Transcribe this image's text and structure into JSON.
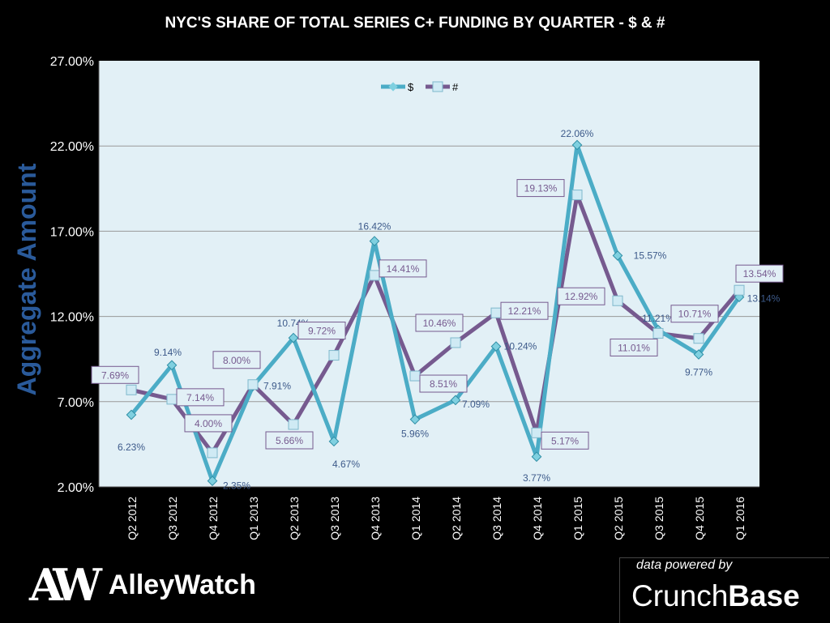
{
  "chart_data": {
    "type": "line",
    "title": "NYC'S SHARE OF TOTAL SERIES C+ FUNDING BY QUARTER - $ & #",
    "ylabel": "Aggregate Amount",
    "xlabel": "",
    "ylim": [
      2,
      27
    ],
    "yticks": [
      "2.00%",
      "7.00%",
      "12.00%",
      "17.00%",
      "22.00%",
      "27.00%"
    ],
    "grid": true,
    "legend_position": "top-center",
    "categories": [
      "Q2 2012",
      "Q3 2012",
      "Q4 2012",
      "Q1 2013",
      "Q2 2013",
      "Q3 2013",
      "Q4 2013",
      "Q1 2014",
      "Q2 2014",
      "Q3 2014",
      "Q4 2014",
      "Q1 2015",
      "Q2 2015",
      "Q3 2015",
      "Q4 2015",
      "Q1 2016"
    ],
    "series": [
      {
        "name": "$",
        "color": "#4bacc6",
        "values": [
          6.23,
          9.14,
          2.35,
          7.91,
          10.74,
          4.67,
          16.42,
          5.96,
          7.09,
          10.24,
          3.77,
          22.06,
          15.57,
          11.21,
          9.77,
          13.14
        ],
        "labels": [
          "6.23%",
          "9.14%",
          "2.35%",
          "7.91%",
          "10.74%",
          "4.67%",
          "16.42%",
          "5.96%",
          "7.09%",
          "10.24%",
          "3.77%",
          "22.06%",
          "15.57%",
          "11.21%",
          "9.77%",
          "13.14%"
        ]
      },
      {
        "name": "#",
        "color": "#765a8f",
        "values": [
          7.69,
          7.14,
          4.0,
          8.0,
          5.66,
          9.72,
          14.41,
          8.51,
          10.46,
          12.21,
          5.17,
          19.13,
          12.92,
          11.01,
          10.71,
          13.54
        ],
        "labels": [
          "7.69%",
          "7.14%",
          "4.00%",
          "8.00%",
          "5.66%",
          "9.72%",
          "14.41%",
          "8.51%",
          "10.46%",
          "12.21%",
          "5.17%",
          "19.13%",
          "12.92%",
          "11.01%",
          "10.71%",
          "13.54%"
        ]
      }
    ]
  },
  "footer": {
    "logo_mark": "AW",
    "logo_name": "AlleyWatch",
    "powered_by": "data powered by",
    "cb_light": "Crunch",
    "cb_bold": "Base"
  }
}
